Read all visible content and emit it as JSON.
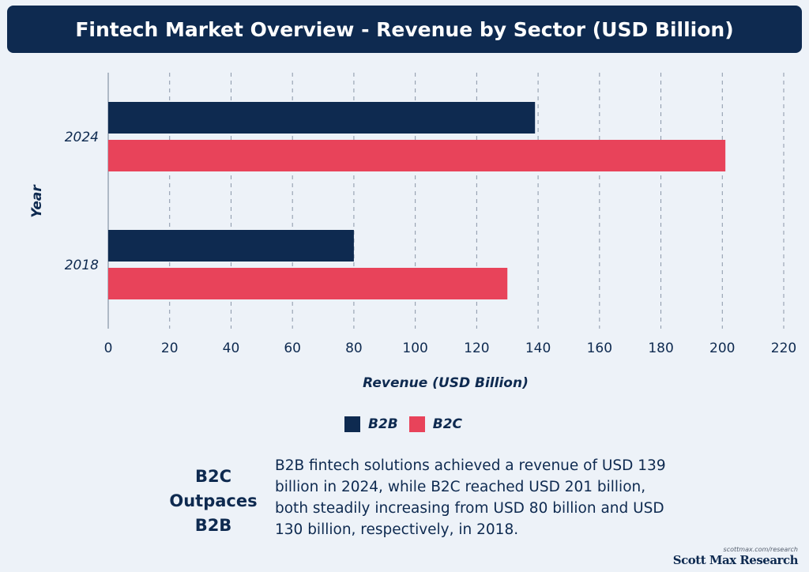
{
  "header": {
    "title": "Fintech Market Overview - Revenue by Sector (USD Billion)"
  },
  "colors": {
    "b2b": "#0e2a50",
    "b2c": "#e8435a",
    "grid": "#8a96a8",
    "axis": "#9aa6b6"
  },
  "chart_data": {
    "type": "bar",
    "orientation": "horizontal",
    "categories": [
      "2024",
      "2018"
    ],
    "series": [
      {
        "name": "B2B",
        "values": [
          139,
          80
        ]
      },
      {
        "name": "B2C",
        "values": [
          201,
          130
        ]
      }
    ],
    "xlabel": "Revenue (USD Billion)",
    "ylabel": "Year",
    "xlim": [
      0,
      220
    ],
    "xticks": [
      0,
      20,
      40,
      60,
      80,
      100,
      120,
      140,
      160,
      180,
      200,
      220
    ],
    "grid": true,
    "legend_position": "bottom"
  },
  "legend": {
    "items": [
      "B2B",
      "B2C"
    ]
  },
  "insight": {
    "headline": "B2C Outpaces B2B",
    "text": "B2B fintech solutions achieved a revenue of USD 139 billion in 2024, while B2C reached USD 201 billion, both steadily increasing from USD 80 billion and USD 130 billion, respectively, in 2018."
  },
  "brand": {
    "url": "scottmax.com/research",
    "name": "Scott Max Research"
  }
}
